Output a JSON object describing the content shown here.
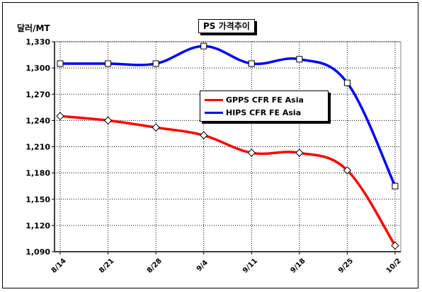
{
  "chart_data": {
    "type": "line",
    "title": "PS 가격추이",
    "ylabel": "달러/MT",
    "categories": [
      "8/14",
      "8/21",
      "8/28",
      "9/4",
      "9/11",
      "9/18",
      "9/25",
      "10/2"
    ],
    "ylim": [
      1090,
      1330
    ],
    "yticks": [
      "1,330",
      "1,300",
      "1,270",
      "1,240",
      "1,210",
      "1,180",
      "1,150",
      "1,120",
      "1,090"
    ],
    "grid": true,
    "legend_position": "center-right",
    "series": [
      {
        "name": "GPPS CFR FE Asia",
        "color": "#ff0000",
        "values": [
          1245,
          1240,
          1232,
          1223,
          1203,
          1203,
          1183,
          1097
        ]
      },
      {
        "name": "HIPS CFR FE Asia",
        "color": "#0000ff",
        "values": [
          1305,
          1305,
          1305,
          1325,
          1305,
          1310,
          1283,
          1165
        ]
      }
    ]
  }
}
